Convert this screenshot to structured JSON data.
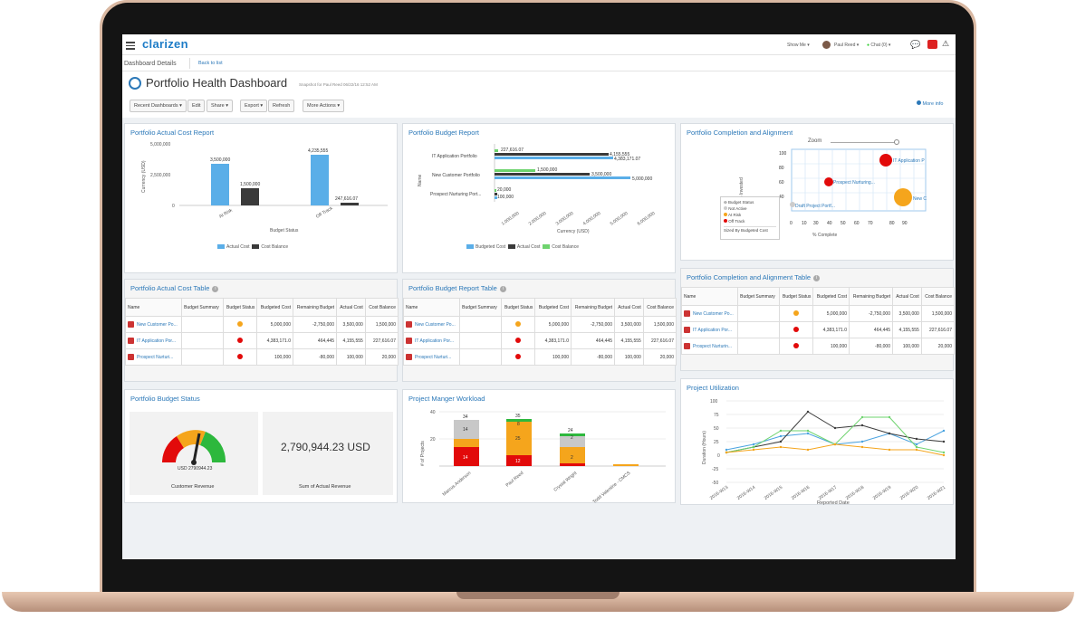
{
  "brand": "clarizen",
  "topbar": {
    "show_me": "Show Me",
    "user": "Paul Reed",
    "chat": "Chat (0)"
  },
  "breadcrumb": {
    "current": "Dashboard Details",
    "back": "Back to list"
  },
  "page": {
    "title": "Portfolio Health Dashboard",
    "snapshot": "Snapshot for Paul Reed 06/22/16 12:52 AM"
  },
  "toolbar": {
    "recent": "Recent Dashboards",
    "edit": "Edit",
    "share": "Share",
    "export": "Export",
    "refresh": "Refresh",
    "more_actions": "More Actions",
    "more_info": "More info"
  },
  "actual_cost_report": {
    "title": "Portfolio Actual Cost Report",
    "ylabel": "Currency (USD)",
    "xlabel": "Budget Status",
    "yticks": [
      "5,000,000",
      "2,500,000",
      "0"
    ],
    "categories": [
      "At Risk",
      "Off Track"
    ],
    "legend": [
      "Actual Cost",
      "Cost Balance"
    ],
    "colors": [
      "#5aaee8",
      "#3a3a3a"
    ],
    "labels": [
      "3,500,000",
      "1,500,000",
      "4,235,555",
      "247,616.07"
    ]
  },
  "budget_report": {
    "title": "Portfolio Budget Report",
    "ylabel": "Name",
    "xlabel": "Currency (USD)",
    "categories": [
      "IT Application Portfolio",
      "New Customer Portfolio",
      "Prospect Nurturing Port..."
    ],
    "xticks": [
      "1,000,000",
      "2,000,000",
      "3,000,000",
      "4,000,000",
      "5,000,000",
      "6,000,000"
    ],
    "legend": [
      "Budgeted Cost",
      "Actual Cost",
      "Cost Balance"
    ],
    "colors": [
      "#5aaee8",
      "#3a3a3a",
      "#6ed36e"
    ],
    "labels": [
      "227,616.07",
      "4,155,555",
      "4,383,171.07",
      "1,500,000",
      "3,500,000",
      "5,000,000",
      "20,000",
      "100,000"
    ]
  },
  "completion": {
    "title": "Portfolio Completion and Alignment",
    "zoom": "Zoom",
    "ylabel": "% Invested",
    "xlabel": "% Complete",
    "yticks": [
      "100",
      "80",
      "60",
      "40"
    ],
    "xticks": [
      "0",
      "10",
      "30",
      "40",
      "50",
      "60",
      "70",
      "80",
      "90"
    ],
    "points": [
      "IT Application P",
      "Prospect Nurturing...",
      "Draft Project Portf...",
      "New C"
    ],
    "legend_title": "Budget Status",
    "legend": [
      "Not Active",
      "At Risk",
      "Off Track"
    ],
    "legend_colors": [
      "#cccccc",
      "#f5a51c",
      "#e20a0a"
    ],
    "sized_by": "Sized By Budgeted Cost",
    "collapsed": "Enabled"
  },
  "actual_cost_table": {
    "title": "Portfolio Actual Cost Table",
    "headers": [
      "Name",
      "Budget Summary",
      "Budget Status",
      "Budgeted Cost",
      "Remaining Budget",
      "Actual Cost",
      "Cost Balance"
    ],
    "rows": [
      {
        "name": "New Customer Po...",
        "bud": "5,000,000",
        "rem": "-2,750,000",
        "act": "3,500,000",
        "bal": "1,500,000",
        "color": "#f5a51c"
      },
      {
        "name": "IT Application Por...",
        "bud": "4,383,171.0",
        "rem": "464,445",
        "act": "4,155,555",
        "bal": "227,616.07",
        "color": "#e20a0a"
      },
      {
        "name": "Prospect Nurturi...",
        "bud": "100,000",
        "rem": "-80,000",
        "act": "100,000",
        "bal": "20,000",
        "color": "#e20a0a"
      }
    ]
  },
  "budget_table": {
    "title": "Portfolio Budget Report Table",
    "headers": [
      "Name",
      "Budget Summary",
      "Budget Status",
      "Budgeted Cost",
      "Remaining Budget",
      "Actual Cost",
      "Cost Balance"
    ],
    "rows": [
      {
        "name": "New Customer Po...",
        "bud": "5,000,000",
        "rem": "-2,750,000",
        "act": "3,500,000",
        "bal": "1,500,000",
        "color": "#f5a51c"
      },
      {
        "name": "IT Application Por...",
        "bud": "4,383,171.0",
        "rem": "464,445",
        "act": "4,155,555",
        "bal": "227,616.07",
        "color": "#e20a0a"
      },
      {
        "name": "Prospect Nurturi...",
        "bud": "100,000",
        "rem": "-80,000",
        "act": "100,000",
        "bal": "20,000",
        "color": "#e20a0a"
      }
    ]
  },
  "completion_table": {
    "title": "Portfolio Completion and Alignment Table",
    "headers": [
      "Name",
      "Budget Summary",
      "Budget Status",
      "Budgeted Cost",
      "Remaining Budget",
      "Actual Cost",
      "Cost Balance"
    ],
    "rows": [
      {
        "name": "New Customer Po...",
        "bud": "5,000,000",
        "rem": "-2,750,000",
        "act": "3,500,000",
        "bal": "1,500,000",
        "color": "#f5a51c"
      },
      {
        "name": "IT Application Por...",
        "bud": "4,383,171.0",
        "rem": "464,445",
        "act": "4,155,555",
        "bal": "227,616.07",
        "color": "#e20a0a"
      },
      {
        "name": "Prospect Nurturin...",
        "bud": "100,000",
        "rem": "-80,000",
        "act": "100,000",
        "bal": "20,000",
        "color": "#e20a0a"
      }
    ]
  },
  "budget_status": {
    "title": "Portfolio Budget Status",
    "gauge_value": "USD 2790944.23",
    "gauge_label": "Customer Revenue",
    "kpi_value": "2,790,944.23 USD",
    "kpi_label": "Sum of Actual Revenue"
  },
  "workload": {
    "title": "Project Manger Workload",
    "ylabel": "# of Projects",
    "yticks": [
      "40",
      "20"
    ],
    "people": [
      "Marcus Anderson",
      "Paul Reed",
      "Crystal Wright",
      "Todd Valentine - CMCS"
    ],
    "labels": [
      "34",
      "14",
      "14",
      "35",
      "8",
      "25",
      "12",
      "24",
      "2",
      "2"
    ]
  },
  "utilization": {
    "title": "Project Utilization",
    "ylabel": "Duration (Hours)",
    "xlabel": "Reported Date",
    "yticks": [
      "100",
      "75",
      "50",
      "25",
      "0",
      "-25",
      "-50"
    ],
    "xticks": [
      "2016-W13",
      "2016-W14",
      "2016-W15",
      "2016-W16",
      "2016-W17",
      "2016-W18",
      "2016-W19",
      "2016-W20",
      "2016-W21"
    ]
  },
  "chart_data": [
    {
      "type": "bar",
      "title": "Portfolio Actual Cost Report",
      "xlabel": "Budget Status",
      "ylabel": "Currency (USD)",
      "categories": [
        "At Risk",
        "Off Track"
      ],
      "series": [
        {
          "name": "Actual Cost",
          "values": [
            3500000,
            4235555
          ]
        },
        {
          "name": "Cost Balance",
          "values": [
            1500000,
            247616.07
          ]
        }
      ],
      "ylim": [
        0,
        5000000
      ],
      "legend": "bottom"
    },
    {
      "type": "bar",
      "title": "Portfolio Budget Report",
      "xlabel": "Currency (USD)",
      "ylabel": "Name",
      "categories": [
        "IT Application Portfolio",
        "New Customer Portfolio",
        "Prospect Nurturing Port..."
      ],
      "series": [
        {
          "name": "Budgeted Cost",
          "values": [
            4383171.07,
            5000000,
            100000
          ]
        },
        {
          "name": "Actual Cost",
          "values": [
            4155555,
            3500000,
            100000
          ]
        },
        {
          "name": "Cost Balance",
          "values": [
            227616.07,
            1500000,
            20000
          ]
        }
      ],
      "legend": "bottom"
    },
    {
      "type": "scatter",
      "title": "Portfolio Completion and Alignment",
      "xlabel": "% Complete",
      "ylabel": "% Invested",
      "series": [
        {
          "name": "Off Track",
          "x": [
            75,
            35
          ],
          "y": [
            95,
            80
          ]
        },
        {
          "name": "At Risk",
          "x": [
            85
          ],
          "y": [
            70
          ]
        },
        {
          "name": "Not Active",
          "x": [
            0
          ],
          "y": [
            60
          ]
        }
      ]
    },
    {
      "type": "bar",
      "title": "Project Manger Workload",
      "ylabel": "# of Projects",
      "categories": [
        "Marcus Anderson",
        "Paul Reed",
        "Crystal Wright",
        "Todd Valentine - CMCS"
      ],
      "series": [
        {
          "name": "red",
          "values": [
            14,
            8,
            2,
            0
          ]
        },
        {
          "name": "orange",
          "values": [
            6,
            25,
            12,
            1
          ]
        },
        {
          "name": "green",
          "values": [
            0,
            2,
            2,
            0
          ]
        },
        {
          "name": "gray",
          "values": [
            14,
            0,
            8,
            0
          ]
        }
      ],
      "ylim": [
        0,
        40
      ]
    },
    {
      "type": "line",
      "title": "Project Utilization",
      "xlabel": "Reported Date",
      "ylabel": "Duration (Hours)",
      "x": [
        "2016-W13",
        "2016-W14",
        "2016-W15",
        "2016-W16",
        "2016-W17",
        "2016-W18",
        "2016-W19",
        "2016-W20",
        "2016-W21"
      ],
      "series": [
        {
          "name": "a",
          "values": [
            10,
            20,
            35,
            40,
            20,
            25,
            40,
            20,
            45
          ]
        },
        {
          "name": "b",
          "values": [
            5,
            15,
            25,
            80,
            50,
            55,
            40,
            30,
            25
          ]
        },
        {
          "name": "c",
          "values": [
            5,
            15,
            45,
            45,
            20,
            70,
            70,
            15,
            5
          ]
        },
        {
          "name": "d",
          "values": [
            5,
            10,
            15,
            10,
            20,
            15,
            10,
            10,
            0
          ]
        }
      ],
      "ylim": [
        -50,
        100
      ]
    }
  ]
}
